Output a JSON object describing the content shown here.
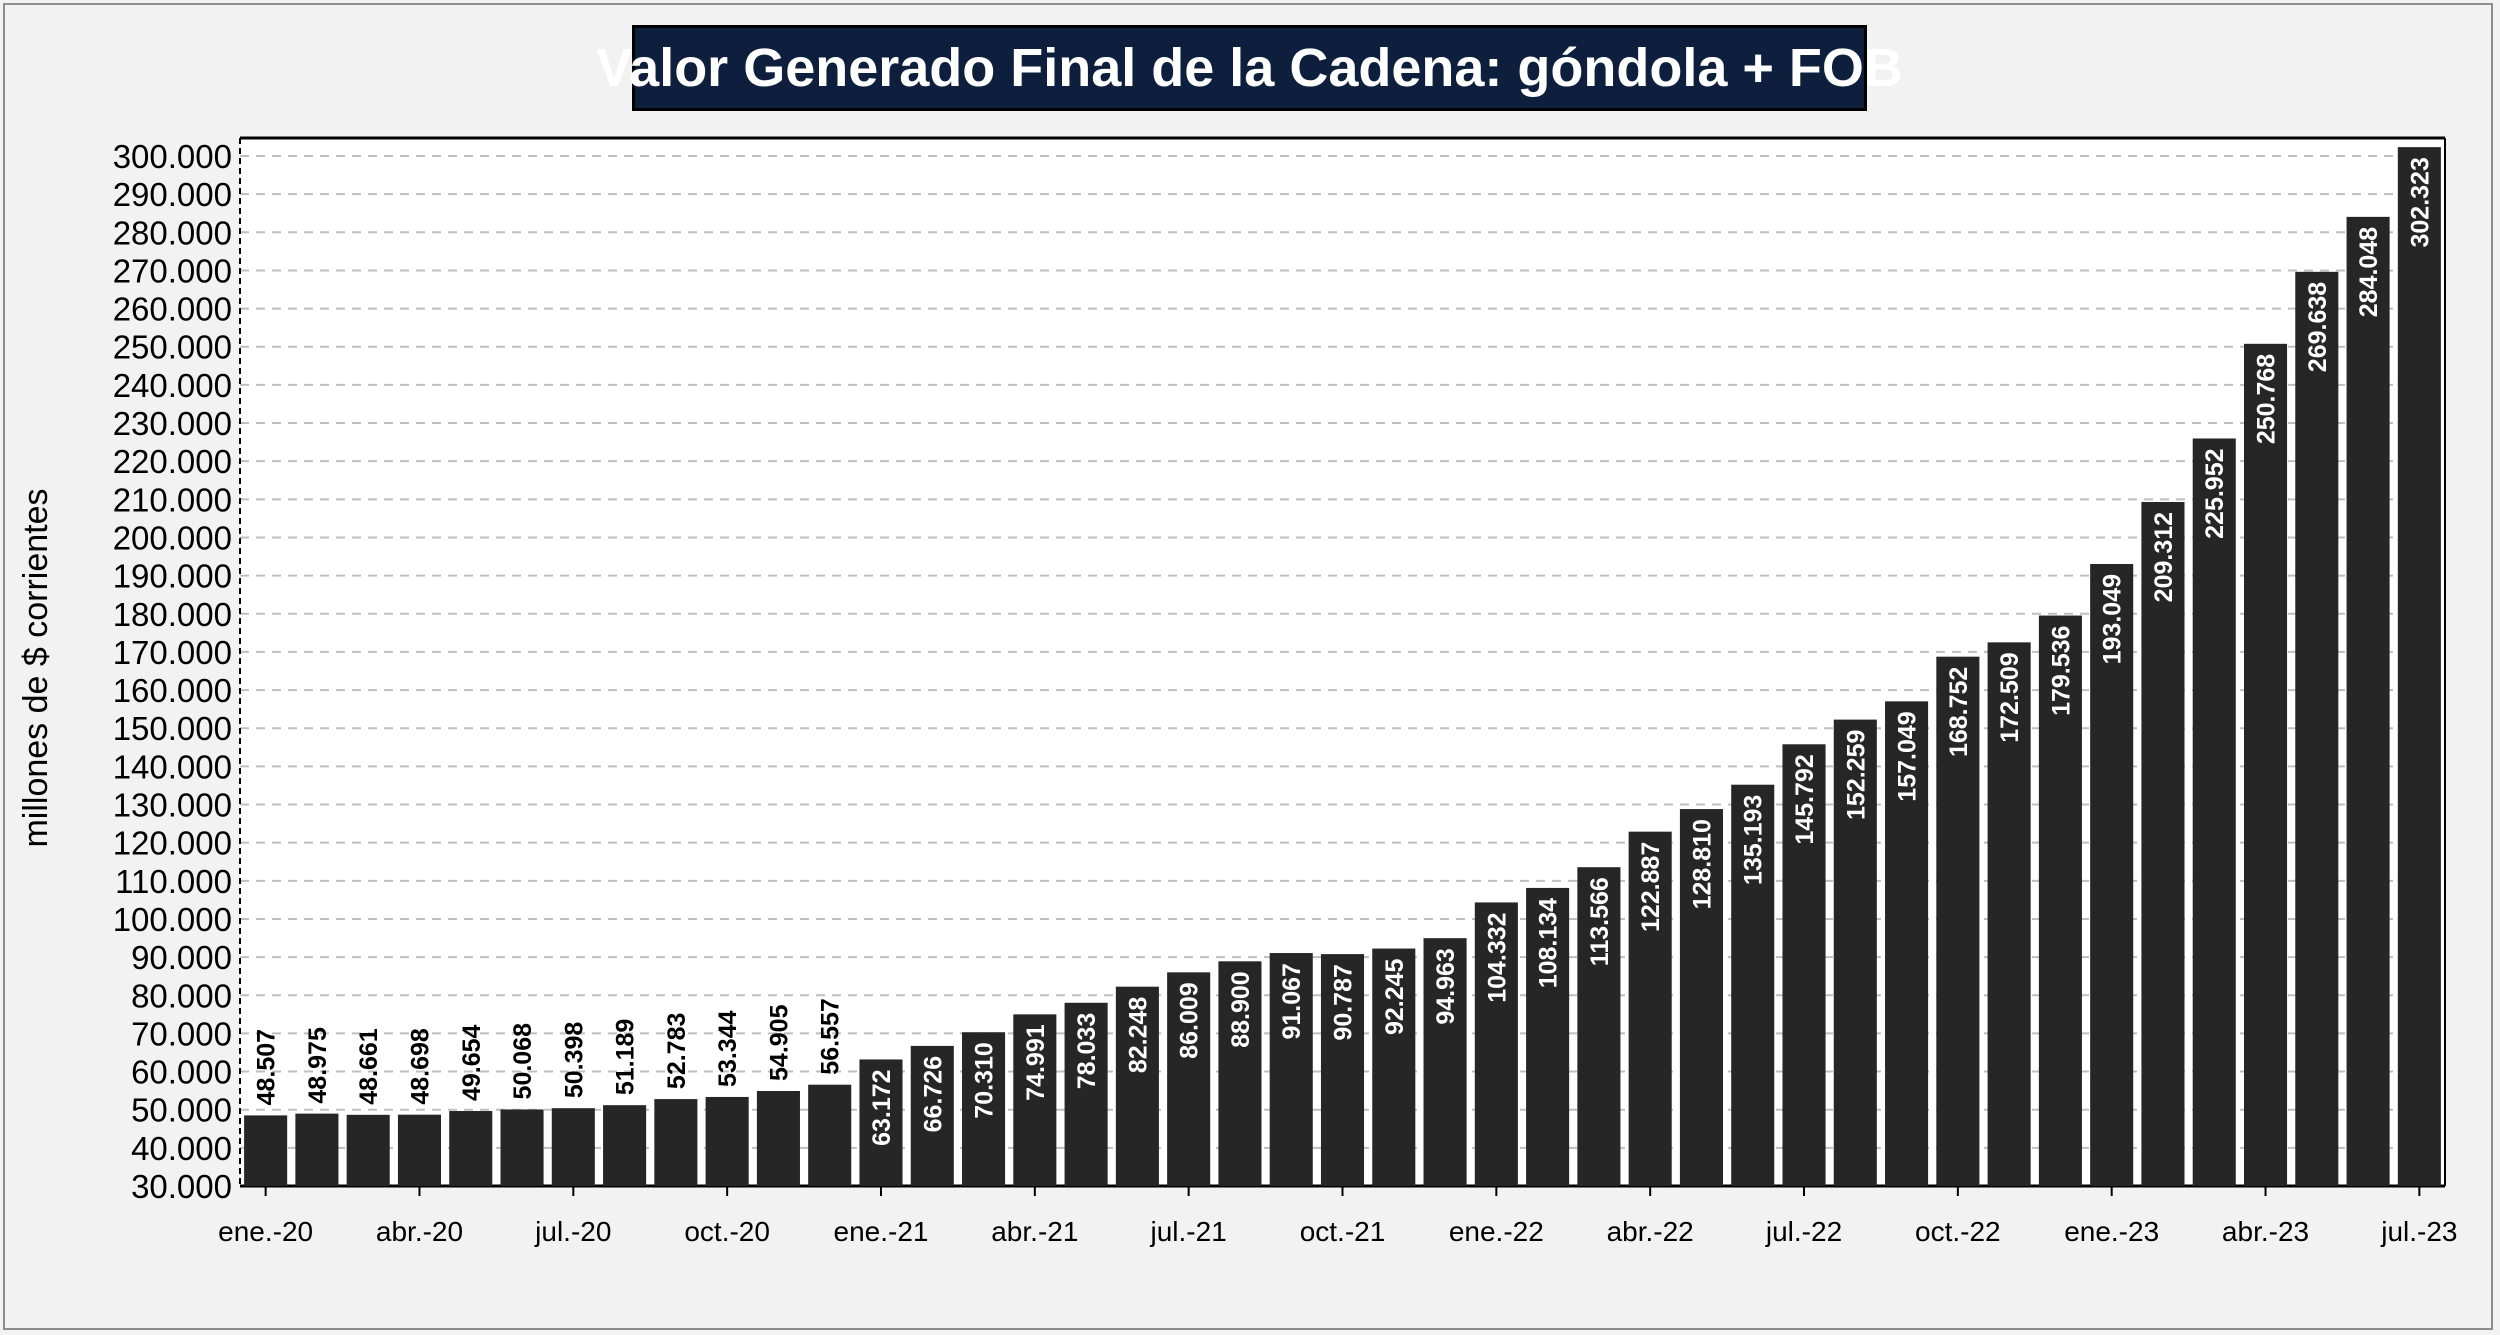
{
  "chart_data": {
    "type": "bar",
    "title": "Valor Generado Final de la Cadena: góndola + FOB",
    "ylabel": "millones de $ corrientes",
    "xlabel": "",
    "ylim": [
      30000,
      302323
    ],
    "ytick_values": [
      30000,
      40000,
      50000,
      60000,
      70000,
      80000,
      90000,
      100000,
      110000,
      120000,
      130000,
      140000,
      150000,
      160000,
      170000,
      180000,
      190000,
      200000,
      210000,
      220000,
      230000,
      240000,
      250000,
      260000,
      270000,
      280000,
      290000,
      300000
    ],
    "ytick_labels": [
      "30.000",
      "40.000",
      "50.000",
      "60.000",
      "70.000",
      "80.000",
      "90.000",
      "100.000",
      "110.000",
      "120.000",
      "130.000",
      "140.000",
      "150.000",
      "160.000",
      "170.000",
      "180.000",
      "190.000",
      "200.000",
      "210.000",
      "220.000",
      "230.000",
      "240.000",
      "250.000",
      "260.000",
      "270.000",
      "280.000",
      "290.000",
      "300.000"
    ],
    "xtick_labels": [
      {
        "index": 0,
        "label": "ene.-20"
      },
      {
        "index": 3,
        "label": "abr.-20"
      },
      {
        "index": 6,
        "label": "jul.-20"
      },
      {
        "index": 9,
        "label": "oct.-20"
      },
      {
        "index": 12,
        "label": "ene.-21"
      },
      {
        "index": 15,
        "label": "abr.-21"
      },
      {
        "index": 18,
        "label": "jul.-21"
      },
      {
        "index": 21,
        "label": "oct.-21"
      },
      {
        "index": 24,
        "label": "ene.-22"
      },
      {
        "index": 27,
        "label": "abr.-22"
      },
      {
        "index": 30,
        "label": "jul.-22"
      },
      {
        "index": 33,
        "label": "oct.-22"
      },
      {
        "index": 36,
        "label": "ene.-23"
      },
      {
        "index": 39,
        "label": "abr.-23"
      },
      {
        "index": 42,
        "label": "jul.-23"
      }
    ],
    "values": [
      48507,
      48975,
      48661,
      48698,
      49654,
      50068,
      50398,
      51189,
      52783,
      53344,
      54905,
      56557,
      63172,
      66726,
      70310,
      74991,
      78033,
      82248,
      86009,
      88900,
      91067,
      90787,
      92245,
      94963,
      104332,
      108134,
      113566,
      122887,
      128810,
      135193,
      145792,
      152259,
      157049,
      168752,
      172509,
      179536,
      193049,
      209312,
      225952,
      250768,
      269638,
      284048,
      302323
    ],
    "value_labels": [
      "48.507",
      "48.975",
      "48.661",
      "48.698",
      "49.654",
      "50.068",
      "50.398",
      "51.189",
      "52.783",
      "53.344",
      "54.905",
      "56.557",
      "63.172",
      "66.726",
      "70.310",
      "74.991",
      "78.033",
      "82.248",
      "86.009",
      "88.900",
      "91.067",
      "90.787",
      "92.245",
      "94.963",
      "104.332",
      "108.134",
      "113.566",
      "122.887",
      "128.810",
      "135.193",
      "145.792",
      "152.259",
      "157.049",
      "168.752",
      "172.509",
      "179.536",
      "193.049",
      "209.312",
      "225.952",
      "250.768",
      "269.638",
      "284.048",
      "302.323"
    ],
    "labels_inside_from_index": 12,
    "bar_color": "#262626",
    "inside_label_color": "#ffffff",
    "outside_label_color": "#000000",
    "grid": true,
    "grid_color": "#bfbfbf",
    "grid_style": "dashed",
    "legend": "none"
  },
  "colors": {
    "background": "#f2f2f2",
    "title_background": "#0d1f3c",
    "title_text": "#ffffff"
  }
}
